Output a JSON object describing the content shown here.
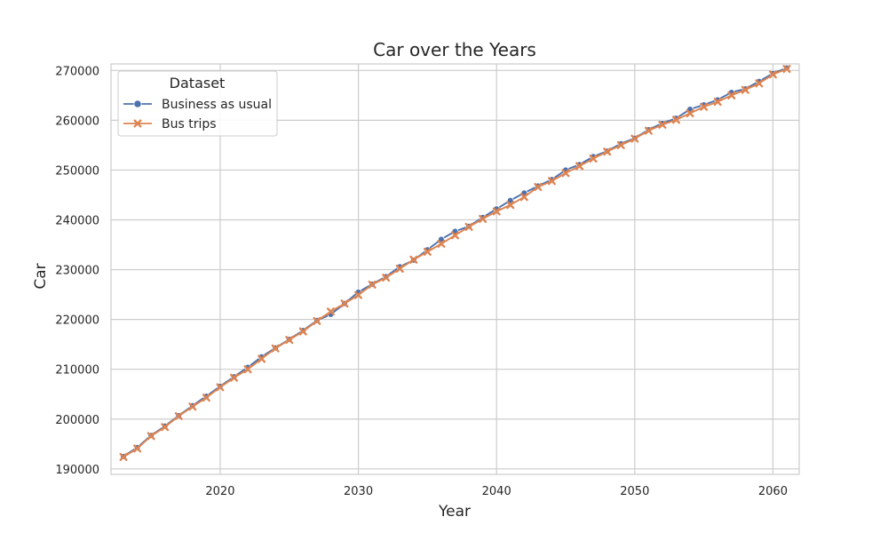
{
  "chart_data": {
    "type": "line",
    "title": "Car over the Years",
    "xlabel": "Year",
    "ylabel": "Car",
    "xlim": [
      2012.1,
      2061.9
    ],
    "ylim": [
      188900,
      271300
    ],
    "x_ticks": [
      2020,
      2030,
      2040,
      2050,
      2060
    ],
    "y_ticks": [
      190000,
      200000,
      210000,
      220000,
      230000,
      240000,
      250000,
      260000,
      270000
    ],
    "grid": true,
    "legend": {
      "title": "Dataset",
      "placement": "top-left"
    },
    "x": [
      2013,
      2014,
      2015,
      2016,
      2017,
      2018,
      2019,
      2020,
      2021,
      2022,
      2023,
      2024,
      2025,
      2026,
      2027,
      2028,
      2029,
      2030,
      2031,
      2032,
      2033,
      2034,
      2035,
      2036,
      2037,
      2038,
      2039,
      2040,
      2041,
      2042,
      2043,
      2044,
      2045,
      2046,
      2047,
      2048,
      2049,
      2050,
      2051,
      2052,
      2053,
      2054,
      2055,
      2056,
      2057,
      2058,
      2059,
      2060,
      2061
    ],
    "series": [
      {
        "name": "Business as usual",
        "color": "#4c72b0",
        "marker": "circle",
        "values": [
          192500,
          194300,
          196700,
          198600,
          200700,
          202700,
          204600,
          206600,
          208500,
          210400,
          212500,
          214300,
          216000,
          217800,
          219800,
          221000,
          223200,
          225500,
          227100,
          228600,
          230600,
          231900,
          234000,
          236100,
          237700,
          238700,
          240500,
          242200,
          243900,
          245400,
          246800,
          248100,
          250000,
          251100,
          252700,
          253800,
          255300,
          256400,
          258100,
          259400,
          260400,
          262200,
          263100,
          264100,
          265600,
          266300,
          267800,
          269400,
          270500
        ]
      },
      {
        "name": "Bus trips",
        "color": "#dd8452",
        "marker": "x",
        "values": [
          192400,
          194100,
          196600,
          198400,
          200600,
          202500,
          204300,
          206400,
          208300,
          210000,
          212100,
          214200,
          215900,
          217600,
          219700,
          221600,
          223200,
          224900,
          227000,
          228400,
          230200,
          232000,
          233600,
          235200,
          236900,
          238600,
          240200,
          241700,
          243000,
          244600,
          246600,
          247800,
          249400,
          250800,
          252300,
          253700,
          255000,
          256300,
          257900,
          259100,
          260100,
          261400,
          262700,
          263700,
          265000,
          266100,
          267400,
          269200,
          270300
        ]
      }
    ]
  }
}
